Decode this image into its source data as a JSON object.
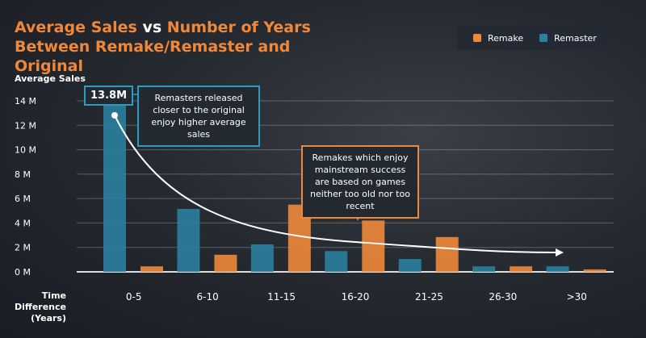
{
  "title": {
    "part1": "Average Sales",
    "part2": "vs",
    "part3": "Number of Years Between Remake/Remaster and Original"
  },
  "legend": [
    {
      "label": "Remake",
      "color": "#f0883a"
    },
    {
      "label": "Remaster",
      "color": "#2b7fa0"
    }
  ],
  "annotations": {
    "peak_label": "13.8M",
    "remaster_note": "Remasters released closer to the original enjoy higher average sales",
    "remake_note": "Remakes which enjoy mainstream success are based on games neither too old nor too recent"
  },
  "chart_data": {
    "type": "bar",
    "title": "Average Sales vs Number of Years Between Remake/Remaster and Original",
    "ylabel": "Average Sales",
    "xlabel": "Time Difference (Years)",
    "xlabel_lines": [
      "Time",
      "Difference",
      "(Years)"
    ],
    "categories": [
      "0-5",
      "6-10",
      "11-15",
      "16-20",
      "21-25",
      "26-30",
      ">30"
    ],
    "yticks": [
      "0 M",
      "2 M",
      "4 M",
      "6 M",
      "8 M",
      "10 M",
      "12 M",
      "14 M"
    ],
    "ylim": [
      0,
      14
    ],
    "series": [
      {
        "name": "Remaster",
        "color": "#2b7fa0",
        "values": [
          13.8,
          5.15,
          2.25,
          1.7,
          1.05,
          0.45,
          0.45
        ]
      },
      {
        "name": "Remake",
        "color": "#f0883a",
        "values": [
          0.45,
          1.4,
          5.5,
          4.2,
          2.85,
          0.45,
          0.2
        ]
      }
    ],
    "grid": true,
    "legend_position": "top-right"
  }
}
